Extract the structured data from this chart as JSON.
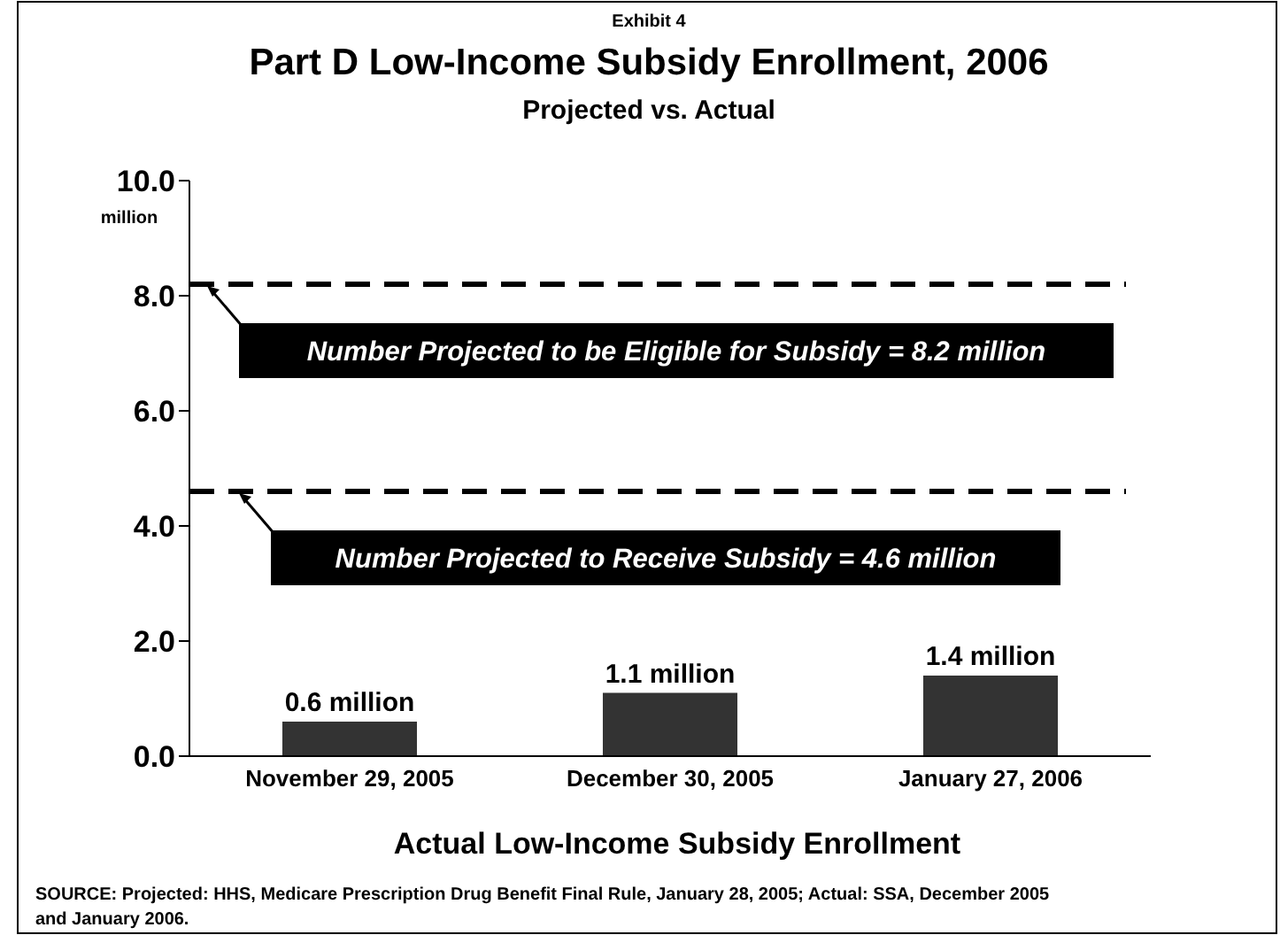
{
  "chart_data": {
    "type": "bar",
    "title": "Part D Low-Income Subsidy Enrollment, 2006",
    "subtitle": "Projected vs. Actual",
    "xlabel": "Actual Low-Income Subsidy Enrollment",
    "ylabel": "million",
    "categories": [
      "November 29, 2005",
      "December 30, 2005",
      "January 27, 2006"
    ],
    "values": [
      0.6,
      1.1,
      1.4
    ],
    "value_labels": [
      "0.6 million",
      "1.1 million",
      "1.4 million"
    ],
    "color": "#333333",
    "ylim": [
      0,
      10
    ],
    "yticks": [
      {
        "value": 0,
        "label": "0.0"
      },
      {
        "value": 2,
        "label": "2.0"
      },
      {
        "value": 4,
        "label": "4.0"
      },
      {
        "value": 6,
        "label": "6.0"
      },
      {
        "value": 8,
        "label": "8.0"
      },
      {
        "value": 10,
        "label": "10.0"
      }
    ],
    "ref_lines": [
      {
        "axis": "y",
        "value": 8.2,
        "label": "Number Projected to be Eligible for Subsidy = 8.2 million",
        "color": "#000000",
        "line_style": "dashed"
      },
      {
        "axis": "y",
        "value": 4.6,
        "label": "Number Projected to Receive Subsidy = 4.6 million",
        "color": "#000000",
        "line_style": "dashed"
      }
    ],
    "annotations": [
      "Exhibit 4",
      "SOURCE: Projected: HHS, Medicare Prescription Drug Benefit Final Rule, January 28, 2005; Actual: SSA, December 2005 and January 2006."
    ],
    "grid": false
  }
}
